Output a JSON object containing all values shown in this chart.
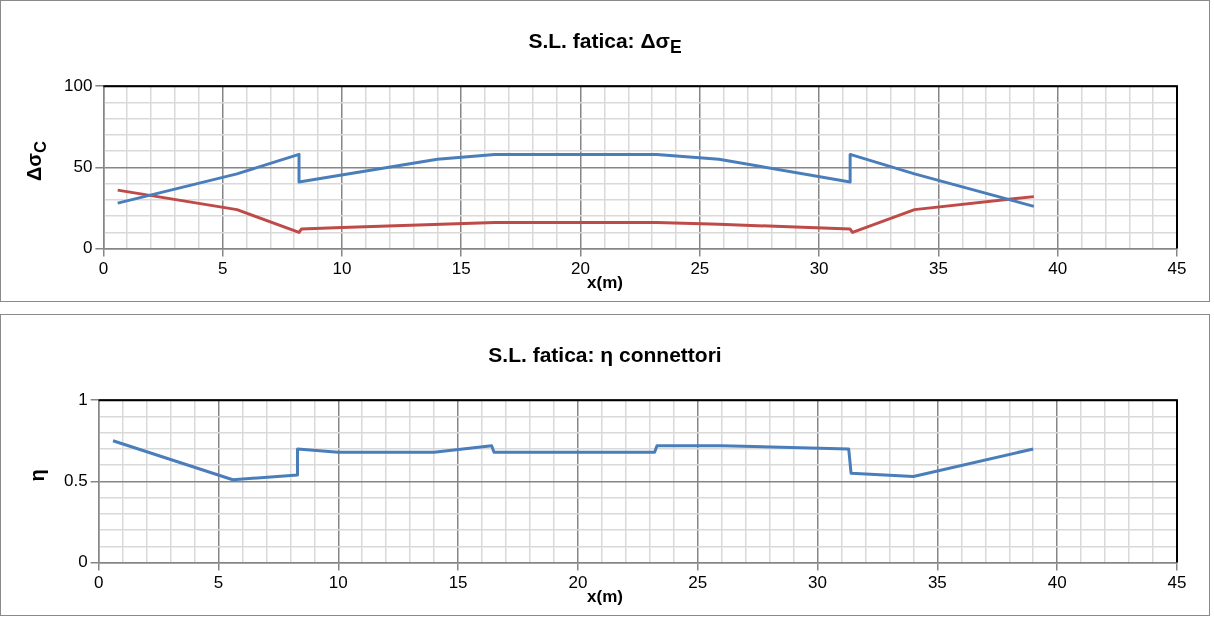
{
  "chart_data": [
    {
      "type": "line",
      "title": "S.L. fatica: Δσ$_{E}$",
      "xlabel": "x(m)",
      "ylabel": "Δσ$_{C}$",
      "xlim": [
        0,
        45
      ],
      "ylim": [
        0,
        100
      ],
      "xticks": [
        0,
        {
          "value": 1,
          "label": null
        },
        {
          "value": 2,
          "label": null
        },
        {
          "value": 3,
          "label": null
        },
        {
          "value": 4,
          "label": null
        },
        5,
        {
          "value": 6,
          "label": null
        },
        {
          "value": 7,
          "label": null
        },
        {
          "value": 8,
          "label": null
        },
        {
          "value": 9,
          "label": null
        },
        10,
        {
          "value": 11,
          "label": null
        },
        {
          "value": 12,
          "label": null
        },
        {
          "value": 13,
          "label": null
        },
        {
          "value": 14,
          "label": null
        },
        15,
        {
          "value": 16,
          "label": null
        },
        {
          "value": 17,
          "label": null
        },
        {
          "value": 18,
          "label": null
        },
        {
          "value": 19,
          "label": null
        },
        20,
        {
          "value": 21,
          "label": null
        },
        {
          "value": 22,
          "label": null
        },
        {
          "value": 23,
          "label": null
        },
        {
          "value": 24,
          "label": null
        },
        25,
        {
          "value": 26,
          "label": null
        },
        {
          "value": 27,
          "label": null
        },
        {
          "value": 28,
          "label": null
        },
        {
          "value": 29,
          "label": null
        },
        30,
        {
          "value": 31,
          "label": null
        },
        {
          "value": 32,
          "label": null
        },
        {
          "value": 33,
          "label": null
        },
        {
          "value": 34,
          "label": null
        },
        35,
        {
          "value": 36,
          "label": null
        },
        {
          "value": 37,
          "label": null
        },
        {
          "value": 38,
          "label": null
        },
        {
          "value": 39,
          "label": null
        },
        40,
        {
          "value": 41,
          "label": null
        },
        {
          "value": 42,
          "label": null
        },
        {
          "value": 43,
          "label": null
        },
        {
          "value": 44,
          "label": null
        },
        45
      ],
      "yticks": [
        0,
        {
          "value": 10,
          "label": null
        },
        {
          "value": 20,
          "label": null
        },
        {
          "value": 30,
          "label": null
        },
        {
          "value": 40,
          "label": null
        },
        50,
        {
          "value": 60,
          "label": null
        },
        {
          "value": 70,
          "label": null
        },
        {
          "value": 80,
          "label": null
        },
        {
          "value": 90,
          "label": null
        },
        100
      ],
      "grid": true,
      "marker": "none",
      "line_style": "solid",
      "series": [
        {
          "color": "#4a7ebb",
          "x": [
            0.6,
            5.6,
            8.2,
            8.2,
            14,
            16.4,
            23.2,
            25.8,
            31.3,
            31.3,
            34,
            39
          ],
          "values": [
            28,
            46,
            58,
            41,
            55,
            58,
            58,
            55,
            41,
            58,
            46,
            26
          ]
        },
        {
          "color": "#be4b48",
          "x": [
            0.6,
            5.6,
            8.2,
            8.3,
            10,
            16.4,
            23.2,
            25.8,
            31.3,
            31.4,
            34,
            39
          ],
          "values": [
            36,
            24,
            10,
            12,
            13,
            16,
            16,
            15,
            12,
            10,
            24,
            32
          ]
        }
      ]
    },
    {
      "type": "line",
      "title": "S.L. fatica: η connettori",
      "xlabel": "x(m)",
      "ylabel": "η",
      "xlim": [
        0,
        45
      ],
      "ylim": [
        0,
        1
      ],
      "xticks": [
        0,
        {
          "value": 1,
          "label": null
        },
        {
          "value": 2,
          "label": null
        },
        {
          "value": 3,
          "label": null
        },
        {
          "value": 4,
          "label": null
        },
        5,
        {
          "value": 6,
          "label": null
        },
        {
          "value": 7,
          "label": null
        },
        {
          "value": 8,
          "label": null
        },
        {
          "value": 9,
          "label": null
        },
        10,
        {
          "value": 11,
          "label": null
        },
        {
          "value": 12,
          "label": null
        },
        {
          "value": 13,
          "label": null
        },
        {
          "value": 14,
          "label": null
        },
        15,
        {
          "value": 16,
          "label": null
        },
        {
          "value": 17,
          "label": null
        },
        {
          "value": 18,
          "label": null
        },
        {
          "value": 19,
          "label": null
        },
        20,
        {
          "value": 21,
          "label": null
        },
        {
          "value": 22,
          "label": null
        },
        {
          "value": 23,
          "label": null
        },
        {
          "value": 24,
          "label": null
        },
        25,
        {
          "value": 26,
          "label": null
        },
        {
          "value": 27,
          "label": null
        },
        {
          "value": 28,
          "label": null
        },
        {
          "value": 29,
          "label": null
        },
        30,
        {
          "value": 31,
          "label": null
        },
        {
          "value": 32,
          "label": null
        },
        {
          "value": 33,
          "label": null
        },
        {
          "value": 34,
          "label": null
        },
        35,
        {
          "value": 36,
          "label": null
        },
        {
          "value": 37,
          "label": null
        },
        {
          "value": 38,
          "label": null
        },
        {
          "value": 39,
          "label": null
        },
        40,
        {
          "value": 41,
          "label": null
        },
        {
          "value": 42,
          "label": null
        },
        {
          "value": 43,
          "label": null
        },
        {
          "value": 44,
          "label": null
        },
        45
      ],
      "yticks": [
        0,
        {
          "value": 0.1,
          "label": null
        },
        {
          "value": 0.2,
          "label": null
        },
        {
          "value": 0.3,
          "label": null
        },
        {
          "value": 0.4,
          "label": null
        },
        0.5,
        {
          "value": 0.6,
          "label": null
        },
        {
          "value": 0.7,
          "label": null
        },
        {
          "value": 0.8,
          "label": null
        },
        {
          "value": 0.9,
          "label": null
        },
        1
      ],
      "grid": true,
      "marker": "none",
      "line_style": "solid",
      "series": [
        {
          "color": "#4a7ebb",
          "x": [
            0.6,
            5.6,
            8.3,
            8.3,
            10,
            14,
            16.4,
            16.5,
            23.2,
            23.3,
            26,
            31.3,
            31.4,
            34,
            39
          ],
          "values": [
            0.75,
            0.51,
            0.54,
            0.7,
            0.68,
            0.68,
            0.72,
            0.68,
            0.68,
            0.72,
            0.72,
            0.7,
            0.55,
            0.53,
            0.7
          ]
        }
      ]
    }
  ]
}
